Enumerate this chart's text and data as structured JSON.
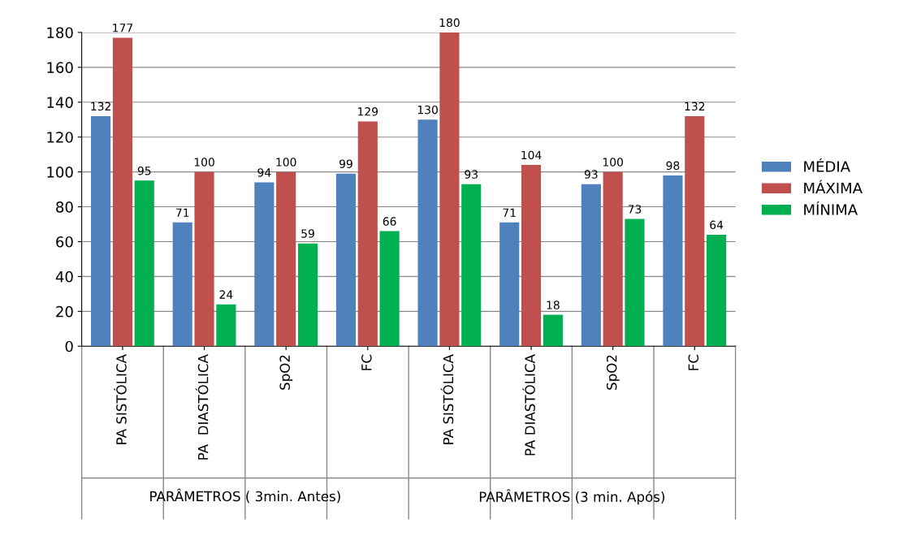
{
  "chart_data": {
    "type": "bar",
    "categories": [
      "PA SISTÓLICA",
      "PA  DIASTÓLICA",
      "SpO2",
      "FC",
      "PA SISTÓLICA",
      "PA DIASTÓLICA",
      "SpO2",
      "FC"
    ],
    "series": [
      {
        "name": "MÉDIA",
        "color": "#4f81bd",
        "values": [
          132,
          71,
          94,
          99,
          130,
          71,
          93,
          98
        ]
      },
      {
        "name": "MÁXIMA",
        "color": "#c0504d",
        "values": [
          177,
          100,
          100,
          129,
          180,
          104,
          100,
          132
        ]
      },
      {
        "name": "MÍNIMA",
        "color": "#00b050",
        "values": [
          95,
          24,
          59,
          66,
          93,
          18,
          73,
          64
        ]
      }
    ],
    "ylim": [
      0,
      180
    ],
    "yticks": [
      0,
      20,
      40,
      60,
      80,
      100,
      120,
      140,
      160,
      180
    ],
    "grid": "y",
    "legend": "right",
    "data_labels": true,
    "annotations": [
      "PARÂMETROS ( 3min. Antes)",
      "PARÂMETROS (3 min. Após)"
    ]
  }
}
